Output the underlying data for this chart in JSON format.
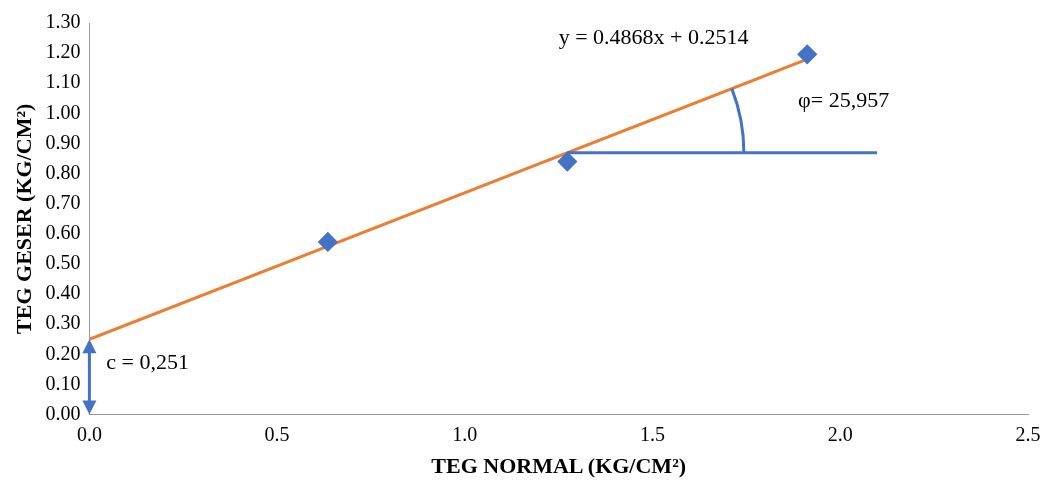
{
  "chart_data": {
    "type": "scatter",
    "xlabel": "TEG NORMAL (KG/CM²)",
    "ylabel": "TEG GESER (KG/CM²)",
    "x": [
      0.635,
      1.273,
      1.912
    ],
    "series": [
      {
        "type": "scatter",
        "color": "#4472c4",
        "values": [
          0.573,
          0.84,
          1.196
        ],
        "marker": "diamond"
      },
      {
        "type": "line",
        "color": "#ed7d31",
        "x": [
          0,
          1.912
        ],
        "values": [
          0.25,
          1.18
        ],
        "marker": "none"
      }
    ],
    "xlim": [
      0,
      2.5
    ],
    "xticks": [
      {
        "value": 0,
        "label": "0.0"
      },
      {
        "value": 0.5,
        "label": "0.5"
      },
      {
        "value": 1,
        "label": "1.0"
      },
      {
        "value": 1.5,
        "label": "1.5"
      },
      {
        "value": 2,
        "label": "2.0"
      },
      {
        "value": 2.5,
        "label": "2.5"
      }
    ],
    "ylim": [
      0,
      1.3
    ],
    "yticks": [
      {
        "value": 0,
        "label": "0.00"
      },
      {
        "value": 0.1,
        "label": "0.10"
      },
      {
        "value": 0.2,
        "label": "0.20"
      },
      {
        "value": 0.3,
        "label": "0.30"
      },
      {
        "value": 0.4,
        "label": "0.40"
      },
      {
        "value": 0.5,
        "label": "0.50"
      },
      {
        "value": 0.6,
        "label": "0.60"
      },
      {
        "value": 0.7,
        "label": "0.70"
      },
      {
        "value": 0.8,
        "label": "0.80"
      },
      {
        "value": 0.9,
        "label": "0.90"
      },
      {
        "value": 1,
        "label": "1.00"
      },
      {
        "value": 1.1,
        "label": "1.10"
      },
      {
        "value": 1.2,
        "label": "1.20"
      },
      {
        "value": 1.3,
        "label": "1.30"
      }
    ],
    "annotations": [
      "y = 0.4868x + 0.2514",
      "φ= 25,957",
      "c = 0,251"
    ],
    "grid": false,
    "legend": false
  }
}
